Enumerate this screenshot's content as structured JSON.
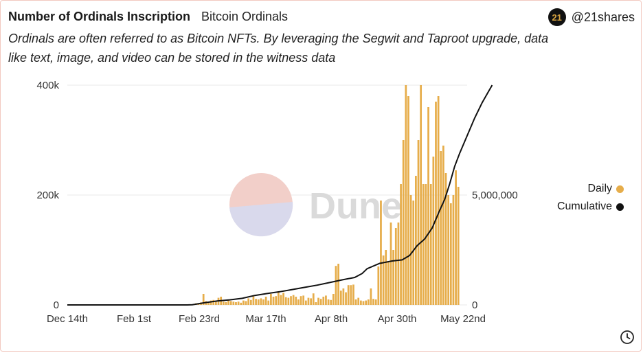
{
  "header": {
    "title": "Number of Ordinals Inscription",
    "tag": "Bitcoin Ordinals",
    "description": "Ordinals are often referred to as Bitcoin NFTs. By leveraging the Segwit and Taproot upgrade, data like text, image, and video can be stored in the witness data"
  },
  "brand": {
    "logo_text": "21",
    "handle": "@21shares"
  },
  "watermark": "Dune",
  "colors": {
    "daily": "#e6ad4a",
    "cumulative": "#111111",
    "grid": "#e8e8e8"
  },
  "chart_data": {
    "type": "bar",
    "title": "Number of Ordinals Inscription",
    "x_tick_labels": [
      "Dec 14th",
      "Feb 1st",
      "Feb 23rd",
      "Mar 17th",
      "Apr 8th",
      "Apr 30th",
      "May 22nd"
    ],
    "y_left": {
      "range": [
        0,
        400000
      ],
      "ticks": [
        0,
        200000,
        400000
      ],
      "tick_labels": [
        "0",
        "200k",
        "400k"
      ]
    },
    "y_right": {
      "range": [
        0,
        10000000
      ],
      "ticks": [
        0,
        5000000
      ],
      "tick_labels": [
        "0",
        "5,000,000"
      ]
    },
    "legend_position": "right",
    "grid": true,
    "series": [
      {
        "name": "Daily",
        "type": "bar",
        "axis": "left",
        "values": [
          0,
          0,
          0,
          0,
          0,
          0,
          0,
          0,
          0,
          0,
          0,
          0,
          0,
          0,
          0,
          0,
          0,
          0,
          0,
          0,
          0,
          0,
          0,
          0,
          0,
          0,
          0,
          0,
          0,
          0,
          0,
          0,
          0,
          0,
          0,
          0,
          0,
          0,
          0,
          0,
          0,
          0,
          0,
          0,
          0,
          0,
          0,
          0,
          0,
          0,
          600,
          3000,
          2000,
          4500,
          20000,
          7000,
          5000,
          8000,
          9000,
          7000,
          13000,
          15000,
          6000,
          5000,
          10000,
          7000,
          6000,
          5000,
          6000,
          4000,
          8000,
          7000,
          12000,
          9000,
          16000,
          11000,
          10000,
          12000,
          10000,
          15000,
          8000,
          20000,
          15000,
          16000,
          24000,
          18000,
          22000,
          14000,
          13000,
          16000,
          18000,
          15000,
          10000,
          16000,
          17000,
          8000,
          13000,
          12000,
          21000,
          5000,
          13000,
          11000,
          15000,
          17000,
          10000,
          9000,
          20000,
          71000,
          75000,
          26000,
          30000,
          23000,
          36000,
          36000,
          37000,
          10000,
          13000,
          8000,
          7000,
          8000,
          10000,
          30000,
          11000,
          10000,
          70000,
          190000,
          90000,
          100000,
          80000,
          150000,
          100000,
          140000,
          150000,
          220000,
          300000,
          400000,
          380000,
          200000,
          190000,
          235000,
          300000,
          400000,
          220000,
          220000,
          360000,
          220000,
          270000,
          370000,
          380000,
          280000,
          290000,
          240000,
          200000,
          185000,
          200000,
          245000,
          215000,
          0,
          0,
          0
        ]
      },
      {
        "name": "Cumulative",
        "type": "line",
        "axis": "right",
        "points": [
          [
            0,
            0
          ],
          [
            48,
            0
          ],
          [
            50,
            10000
          ],
          [
            55,
            100000
          ],
          [
            60,
            180000
          ],
          [
            65,
            230000
          ],
          [
            70,
            300000
          ],
          [
            75,
            430000
          ],
          [
            80,
            520000
          ],
          [
            85,
            600000
          ],
          [
            90,
            700000
          ],
          [
            95,
            800000
          ],
          [
            100,
            900000
          ],
          [
            105,
            1020000
          ],
          [
            110,
            1140000
          ],
          [
            115,
            1250000
          ],
          [
            118,
            1430000
          ],
          [
            120,
            1650000
          ],
          [
            125,
            1890000
          ],
          [
            130,
            2000000
          ],
          [
            134,
            2050000
          ],
          [
            137,
            2250000
          ],
          [
            140,
            2700000
          ],
          [
            143,
            3000000
          ],
          [
            146,
            3500000
          ],
          [
            149,
            4300000
          ],
          [
            151,
            4800000
          ],
          [
            153,
            5500000
          ],
          [
            155,
            6300000
          ],
          [
            157,
            6900000
          ],
          [
            160,
            7700000
          ],
          [
            163,
            8500000
          ],
          [
            166,
            9200000
          ],
          [
            168,
            9600000
          ],
          [
            170,
            10000000
          ]
        ]
      }
    ]
  },
  "legend": [
    {
      "label": "Daily",
      "color": "#e6ad4a"
    },
    {
      "label": "Cumulative",
      "color": "#111111"
    }
  ]
}
